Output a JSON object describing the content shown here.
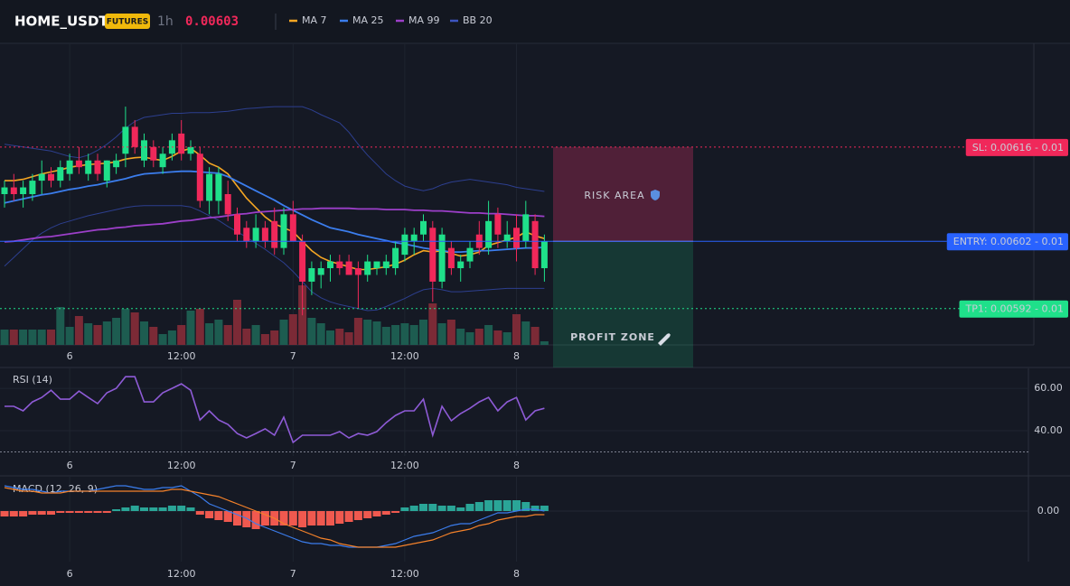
{
  "header": {
    "symbol": "HOME_USDT",
    "badge": "FUTURES",
    "interval": "1h",
    "last_price": 0.00603
  },
  "chart_data": [
    {
      "type": "candlestick",
      "categories": [
        null,
        null,
        null,
        null,
        null,
        null,
        null,
        "6",
        null,
        null,
        null,
        null,
        null,
        null,
        null,
        null,
        null,
        null,
        null,
        "12:00",
        null,
        null,
        null,
        null,
        null,
        null,
        null,
        null,
        null,
        null,
        null,
        "7",
        null,
        null,
        null,
        null,
        null,
        null,
        null,
        null,
        null,
        null,
        null,
        "12:00",
        null,
        null,
        null,
        null,
        null,
        null,
        null,
        null,
        null,
        null,
        null,
        "8",
        null,
        null,
        null
      ],
      "open": [
        0.00609,
        0.0061,
        0.00609,
        0.00609,
        0.00611,
        0.00612,
        0.00611,
        0.00612,
        0.00614,
        0.00612,
        0.00614,
        0.00611,
        0.00613,
        0.00615,
        0.00619,
        0.00614,
        0.00616,
        0.00613,
        0.00615,
        0.00618,
        0.00615,
        0.00615,
        0.00608,
        0.00608,
        0.00609,
        0.00606,
        0.00604,
        0.00602,
        0.00604,
        0.00605,
        0.00601,
        0.00606,
        0.00602,
        0.00596,
        0.00597,
        0.00598,
        0.00599,
        0.00599,
        0.00598,
        0.00597,
        0.00598,
        0.00598,
        0.00598,
        0.006,
        0.00602,
        0.00603,
        0.00604,
        0.00596,
        0.00601,
        0.00598,
        0.00599,
        0.00603,
        0.00601,
        0.00606,
        0.00602,
        0.00604,
        0.00602,
        0.00605,
        0.00598
      ],
      "high": [
        0.00611,
        0.00612,
        0.00611,
        0.00612,
        0.00614,
        0.00613,
        0.00614,
        0.00615,
        0.00616,
        0.00615,
        0.00615,
        0.00614,
        0.00615,
        0.00622,
        0.0062,
        0.00618,
        0.00617,
        0.00616,
        0.00618,
        0.0062,
        0.00617,
        0.00616,
        0.00613,
        0.00613,
        0.00611,
        0.00607,
        0.00605,
        0.00606,
        0.00605,
        0.00607,
        0.00607,
        0.00608,
        0.00603,
        0.00599,
        0.00599,
        0.006,
        0.006,
        0.006,
        0.00599,
        0.006,
        0.00599,
        0.006,
        0.00602,
        0.00604,
        0.00604,
        0.00606,
        0.00605,
        0.00604,
        0.00602,
        0.006,
        0.00602,
        0.00605,
        0.00608,
        0.00607,
        0.00605,
        0.00606,
        0.00608,
        0.00606,
        0.00603
      ],
      "low": [
        0.00607,
        0.00608,
        0.00607,
        0.00608,
        0.00609,
        0.0061,
        0.0061,
        0.00611,
        0.00612,
        0.00611,
        0.00611,
        0.0061,
        0.00612,
        0.00613,
        0.00615,
        0.00613,
        0.00613,
        0.00612,
        0.00614,
        0.00614,
        0.00614,
        0.00607,
        0.00606,
        0.00606,
        0.00605,
        0.00602,
        0.00601,
        0.00601,
        0.00601,
        0.006,
        0.006,
        0.00602,
        0.00591,
        0.00594,
        0.00595,
        0.00596,
        0.00597,
        0.00597,
        0.00592,
        0.00596,
        0.00597,
        0.00597,
        0.00597,
        0.00599,
        0.006,
        0.00602,
        0.00593,
        0.00595,
        0.00597,
        0.00596,
        0.00598,
        0.006,
        0.006,
        0.00601,
        0.00601,
        0.00599,
        0.00601,
        0.00597,
        0.00596
      ],
      "close": [
        0.0061,
        0.00609,
        0.0061,
        0.00611,
        0.00612,
        0.00611,
        0.00613,
        0.00614,
        0.00613,
        0.00614,
        0.00612,
        0.00614,
        0.00614,
        0.00619,
        0.00616,
        0.00617,
        0.00614,
        0.00615,
        0.00617,
        0.00615,
        0.00616,
        0.00608,
        0.00612,
        0.00612,
        0.00606,
        0.00603,
        0.00602,
        0.00604,
        0.00602,
        0.00601,
        0.00606,
        0.00602,
        0.00596,
        0.00598,
        0.00598,
        0.00599,
        0.00598,
        0.00597,
        0.00597,
        0.00599,
        0.00599,
        0.00599,
        0.00601,
        0.00603,
        0.00603,
        0.00605,
        0.00596,
        0.00603,
        0.00598,
        0.00599,
        0.00601,
        0.00601,
        0.00605,
        0.00603,
        0.00603,
        0.00601,
        0.00606,
        0.00598,
        0.00602
      ],
      "volume": [
        17,
        17,
        17,
        17,
        17,
        17,
        42,
        20,
        32,
        24,
        22,
        26,
        30,
        40,
        36,
        26,
        20,
        12,
        16,
        22,
        38,
        40,
        24,
        28,
        22,
        50,
        18,
        22,
        12,
        16,
        28,
        34,
        66,
        30,
        24,
        16,
        18,
        14,
        30,
        28,
        26,
        20,
        22,
        24,
        22,
        28,
        46,
        24,
        28,
        18,
        14,
        18,
        22,
        16,
        14,
        34,
        26,
        20,
        4
      ],
      "up_color": "#1fe08a",
      "down_color": "#f0285a",
      "volume_up_color": "#1d5c50",
      "volume_down_color": "#7b2a36",
      "series": [
        {
          "name": "MA 7",
          "color": "#f5a623",
          "values": [
            0.00611,
            0.00611,
            0.006112,
            0.006116,
            0.00612,
            0.006123,
            0.006126,
            0.00613,
            0.006132,
            0.006134,
            0.006135,
            0.006136,
            0.006138,
            0.006142,
            0.006144,
            0.006145,
            0.006142,
            0.00614,
            0.006146,
            0.006154,
            0.006158,
            0.006148,
            0.006136,
            0.00613,
            0.00612,
            0.006102,
            0.006084,
            0.00607,
            0.006056,
            0.006046,
            0.00604,
            0.006034,
            0.00602,
            0.006006,
            0.005996,
            0.00599,
            0.005986,
            0.005982,
            0.005978,
            0.005978,
            0.00598,
            0.005982,
            0.005986,
            0.005992,
            0.006,
            0.006006,
            0.006004,
            0.006006,
            0.006002,
            0.005998,
            0.006,
            0.006004,
            0.006014,
            0.006018,
            0.006022,
            0.006026,
            0.006034,
            0.006028,
            0.006024
          ]
        },
        {
          "name": "MA 25",
          "color": "#3b7ded",
          "values": [
            0.006077,
            0.00608,
            0.006083,
            0.006086,
            0.006089,
            0.006091,
            0.006094,
            0.006097,
            0.006099,
            0.006102,
            0.006104,
            0.006107,
            0.00611,
            0.006113,
            0.006117,
            0.00612,
            0.006121,
            0.006122,
            0.006123,
            0.006124,
            0.006124,
            0.006123,
            0.006122,
            0.006121,
            0.006116,
            0.006109,
            0.006102,
            0.006095,
            0.006088,
            0.006081,
            0.006073,
            0.006066,
            0.006059,
            0.006052,
            0.006046,
            0.00604,
            0.006037,
            0.006034,
            0.00603,
            0.006027,
            0.006024,
            0.006021,
            0.006018,
            0.006016,
            0.006013,
            0.00601,
            0.006008,
            0.006006,
            0.006004,
            0.006004,
            0.006005,
            0.006006,
            0.006006,
            0.006007,
            0.006008,
            0.006009,
            0.00601,
            0.00601,
            0.006011
          ]
        },
        {
          "name": "MA 99",
          "color": "#9c3fc9",
          "values": [
            0.006019,
            0.00602,
            0.006022,
            0.006024,
            0.006026,
            0.006027,
            0.006029,
            0.006031,
            0.006033,
            0.006035,
            0.006037,
            0.006038,
            0.00604,
            0.006041,
            0.006043,
            0.006044,
            0.006045,
            0.006046,
            0.006048,
            0.00605,
            0.006051,
            0.006053,
            0.006055,
            0.006056,
            0.006058,
            0.00606,
            0.006061,
            0.006063,
            0.006064,
            0.006065,
            0.006066,
            0.006067,
            0.006068,
            0.006068,
            0.006069,
            0.006069,
            0.006069,
            0.006069,
            0.006068,
            0.006068,
            0.006068,
            0.006067,
            0.006067,
            0.006067,
            0.006066,
            0.006066,
            0.006065,
            0.006065,
            0.006064,
            0.006063,
            0.006062,
            0.006062,
            0.006061,
            0.006061,
            0.00606,
            0.006059,
            0.006058,
            0.006058,
            0.006057
          ]
        },
        {
          "name": "BB 20",
          "color": "#2d3f8f",
          "upper": [
            0.006164,
            0.006162,
            0.00616,
            0.006158,
            0.006156,
            0.006154,
            0.00615,
            0.006146,
            0.006144,
            0.006148,
            0.006155,
            0.006164,
            0.006175,
            0.006188,
            0.006198,
            0.006204,
            0.006206,
            0.006208,
            0.00621,
            0.00621,
            0.006211,
            0.006211,
            0.006211,
            0.006212,
            0.006213,
            0.006215,
            0.006217,
            0.006218,
            0.006219,
            0.00622,
            0.00622,
            0.00622,
            0.00622,
            0.006215,
            0.006208,
            0.006202,
            0.006196,
            0.006182,
            0.006164,
            0.006148,
            0.006134,
            0.00612,
            0.00611,
            0.006102,
            0.006098,
            0.006095,
            0.006098,
            0.006104,
            0.006108,
            0.00611,
            0.006112,
            0.00611,
            0.006108,
            0.006106,
            0.006104,
            0.0061,
            0.006098,
            0.006096,
            0.006094
          ],
          "lower": [
            0.005983,
            0.005996,
            0.006009,
            0.006022,
            0.006032,
            0.00604,
            0.006046,
            0.00605,
            0.006054,
            0.006058,
            0.006061,
            0.006064,
            0.006067,
            0.00607,
            0.006072,
            0.006073,
            0.006073,
            0.006073,
            0.006073,
            0.006073,
            0.006071,
            0.006065,
            0.006058,
            0.006051,
            0.006042,
            0.006034,
            0.006026,
            0.006017,
            0.006008,
            0.005998,
            0.005988,
            0.005975,
            0.00596,
            0.005945,
            0.005936,
            0.00593,
            0.005926,
            0.005923,
            0.00592,
            0.005917,
            0.005918,
            0.005923,
            0.005929,
            0.005935,
            0.005942,
            0.005948,
            0.00595,
            0.005948,
            0.005945,
            0.005945,
            0.005946,
            0.005947,
            0.005948,
            0.005949,
            0.00595,
            0.00595,
            0.00595,
            0.00595,
            0.00595
          ]
        }
      ],
      "ylim": [
        0.005866,
        0.006314
      ],
      "levels": [
        {
          "label": "SL: 0.00616 - 0.01",
          "value": 0.00616,
          "color": "#f0285a",
          "text_color": "#ffffff"
        },
        {
          "label": "ENTRY: 0.00602 - 0.01",
          "value": 0.00602,
          "color": "#2962ff",
          "text_color": "#ffffff"
        },
        {
          "label": "TP1: 0.00592 - 0.01",
          "value": 0.00592,
          "color": "#1fe08a",
          "text_color": "#0b1a12"
        }
      ],
      "zones": [
        {
          "label": "RISK AREA",
          "color": "#e8336b"
        },
        {
          "label": "PROFIT ZONE",
          "color": "#1fe08a"
        }
      ],
      "grid": true
    },
    {
      "type": "line",
      "title": "RSI (14)",
      "color": "#8e5bd6",
      "values": [
        51.5,
        51.5,
        49.4,
        53.6,
        55.7,
        59.1,
        54.9,
        54.9,
        58.7,
        55.7,
        52.8,
        57.9,
        60,
        65.5,
        65.5,
        53.6,
        53.6,
        57.9,
        60,
        62.1,
        59.1,
        45.1,
        49.4,
        45.1,
        43,
        38.7,
        36.6,
        38.7,
        40.9,
        37.9,
        46.4,
        34.5,
        37.9,
        37.9,
        37.9,
        37.9,
        39.6,
        36.6,
        38.7,
        37.9,
        39.6,
        43.8,
        47.2,
        49.4,
        49.4,
        54.9,
        37.9,
        51.5,
        44.7,
        48.1,
        50.6,
        53.6,
        55.7,
        49.4,
        53.6,
        55.7,
        45.1,
        49.4,
        50.6
      ],
      "ylim": [
        28.1,
        69.4
      ],
      "yticks": [
        {
          "value": 40,
          "label": "40.00"
        },
        {
          "value": 60,
          "label": "60.00"
        }
      ],
      "reference_lines": [
        30
      ],
      "grid": true
    },
    {
      "type": "macd",
      "title": "MACD (12, 26, 9)",
      "macd": {
        "color": "#3b7ded",
        "values": [
          1.4e-05,
          1.3e-05,
          1.2e-05,
          1.2e-05,
          1.1e-05,
          1e-05,
          1.1e-05,
          1.1e-05,
          1.1e-05,
          1.1e-05,
          1.2e-05,
          1.3e-05,
          1.4e-05,
          1.4e-05,
          1.3e-05,
          1.2e-05,
          1.2e-05,
          1.3e-05,
          1.3e-05,
          1.4e-05,
          1.1e-05,
          8e-06,
          4e-06,
          2e-06,
          0,
          -2e-06,
          -4e-06,
          -7e-06,
          -9e-06,
          -1.1e-05,
          -1.3e-05,
          -1.5e-05,
          -1.7e-05,
          -1.8e-05,
          -1.8e-05,
          -1.9e-05,
          -1.9e-05,
          -2e-05,
          -2e-05,
          -2e-05,
          -2e-05,
          -1.9e-05,
          -1.8e-05,
          -1.6e-05,
          -1.4e-05,
          -1.3e-05,
          -1.2e-05,
          -1e-05,
          -8e-06,
          -7e-06,
          -7e-06,
          -5e-06,
          -3e-06,
          -1e-06,
          -1e-06,
          0,
          1e-06,
          1e-06,
          0
        ]
      },
      "signal": {
        "color": "#f5822a",
        "values": [
          1.3e-05,
          1.2e-05,
          1.1e-05,
          1.1e-05,
          1e-05,
          1e-05,
          1e-05,
          1.1e-05,
          1.1e-05,
          1.1e-05,
          1.1e-05,
          1.1e-05,
          1.1e-05,
          1.1e-05,
          1.1e-05,
          1.1e-05,
          1.1e-05,
          1.1e-05,
          1.2e-05,
          1.2e-05,
          1.1e-05,
          1e-05,
          9e-06,
          8e-06,
          6e-06,
          4e-06,
          2e-06,
          0,
          -2e-06,
          -4e-06,
          -7e-06,
          -9e-06,
          -1.1e-05,
          -1.3e-05,
          -1.5e-05,
          -1.6e-05,
          -1.8e-05,
          -1.9e-05,
          -2e-05,
          -2e-05,
          -2e-05,
          -2e-05,
          -2e-05,
          -1.9e-05,
          -1.8e-05,
          -1.7e-05,
          -1.6e-05,
          -1.4e-05,
          -1.2e-05,
          -1.1e-05,
          -1e-05,
          -8e-06,
          -7e-06,
          -5e-06,
          -4e-06,
          -3e-06,
          -3e-06,
          -2e-06,
          -2e-06
        ]
      },
      "histogram": {
        "up_color": "#2aa597",
        "down_color": "#f0594f",
        "values": [
          -3e-06,
          -3e-06,
          -3e-06,
          -2e-06,
          -2e-06,
          -2e-06,
          -1e-06,
          -1e-06,
          -1e-06,
          -1e-06,
          -1e-06,
          -1e-06,
          1e-06,
          2e-06,
          3e-06,
          2e-06,
          2e-06,
          2e-06,
          3e-06,
          3e-06,
          2e-06,
          -2e-06,
          -4e-06,
          -5e-06,
          -6e-06,
          -8e-06,
          -9e-06,
          -1e-05,
          -8e-06,
          -8e-06,
          -8e-06,
          -8e-06,
          -9e-06,
          -8e-06,
          -8e-06,
          -8e-06,
          -7e-06,
          -6e-06,
          -5e-06,
          -4e-06,
          -3e-06,
          -2e-06,
          -1e-06,
          2e-06,
          3e-06,
          4e-06,
          4e-06,
          3e-06,
          3e-06,
          2e-06,
          4e-06,
          5e-06,
          6e-06,
          6e-06,
          6e-06,
          6e-06,
          5e-06,
          3e-06,
          3e-06
        ]
      },
      "ylim": [
        -2.8e-05,
        1.9e-05
      ],
      "yticks": [
        {
          "value": 0,
          "label": "0.00"
        }
      ]
    }
  ]
}
